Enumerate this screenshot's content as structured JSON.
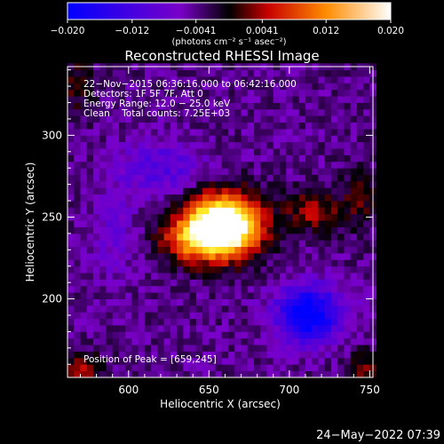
{
  "chart_data": {
    "type": "heatmap",
    "title": "Reconstructed RHESSI Image",
    "xlabel": "Heliocentric X (arcsec)",
    "ylabel": "Heliocentric Y (arcsec)",
    "xlim": [
      562,
      752
    ],
    "ylim": [
      152,
      342
    ],
    "x_ticks": [
      {
        "value": 600,
        "label": "600"
      },
      {
        "value": 650,
        "label": "650"
      },
      {
        "value": 700,
        "label": "700"
      },
      {
        "value": 750,
        "label": "750"
      }
    ],
    "y_ticks": [
      {
        "value": 200,
        "label": "200"
      },
      {
        "value": 250,
        "label": "250"
      },
      {
        "value": 300,
        "label": "300"
      }
    ],
    "colorbar": {
      "range": [
        -0.02,
        0.02
      ],
      "ticks": [
        {
          "value": -0.02,
          "label": "−0.020"
        },
        {
          "value": -0.012,
          "label": "−0.012"
        },
        {
          "value": -0.0041,
          "label": "−0.0041"
        },
        {
          "value": 0.0041,
          "label": "0.0041"
        },
        {
          "value": 0.012,
          "label": "0.012"
        },
        {
          "value": 0.02,
          "label": "0.020"
        }
      ],
      "units": "(photons cm⁻² s⁻¹ asec⁻²)"
    },
    "annotations": [
      "22−Nov−2015 06:36:16.000 to 06:42:16.000",
      "Detectors: 1F 5F 7F, Att 0",
      "Energy Range: 12.0 − 25.0 keV",
      "Clean    Total counts: 7.25E+03"
    ],
    "peak_label": "Position of Peak = [659,245]",
    "peak": [
      659,
      245
    ],
    "sources": [
      {
        "x": 659,
        "y": 245,
        "sx": 16,
        "sy": 13,
        "amp": 0.034
      },
      {
        "x": 638,
        "y": 236,
        "sx": 14,
        "sy": 10,
        "amp": 0.01
      },
      {
        "x": 715,
        "y": 254,
        "sx": 12,
        "sy": 9,
        "amp": 0.008
      },
      {
        "x": 744,
        "y": 262,
        "sx": 8,
        "sy": 14,
        "amp": 0.005
      },
      {
        "x": 570,
        "y": 156,
        "sx": 10,
        "sy": 8,
        "amp": 0.008
      },
      {
        "x": 748,
        "y": 156,
        "sx": 8,
        "sy": 8,
        "amp": 0.006
      },
      {
        "x": 568,
        "y": 330,
        "sx": 8,
        "sy": 12,
        "amp": 0.005
      },
      {
        "x": 712,
        "y": 191,
        "sx": 14,
        "sy": 12,
        "amp": -0.018
      },
      {
        "x": 620,
        "y": 280,
        "sx": 18,
        "sy": 12,
        "amp": -0.007
      },
      {
        "x": 590,
        "y": 240,
        "sx": 10,
        "sy": 20,
        "amp": -0.004
      }
    ],
    "background": -0.004
  },
  "timestamp": "24−May−2022 07:39"
}
